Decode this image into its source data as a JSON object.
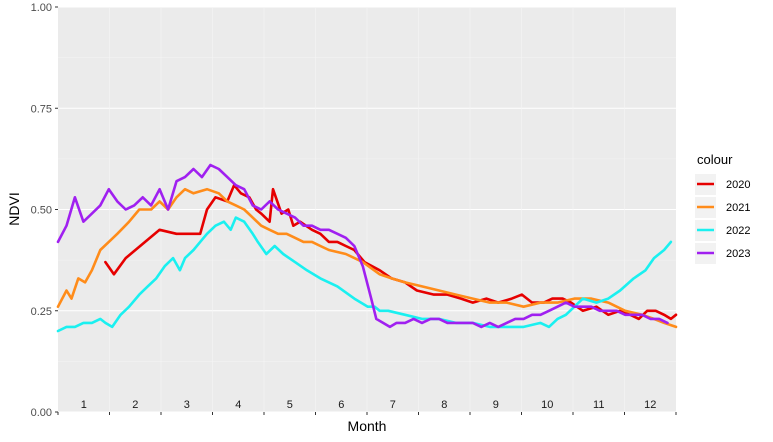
{
  "chart_data": {
    "type": "line",
    "xlabel": "Month",
    "ylabel": "NDVI",
    "ylim": [
      0,
      1
    ],
    "y_ticks": [
      "0.00",
      "0.25",
      "0.50",
      "0.75",
      "1.00"
    ],
    "x_range": [
      0,
      365
    ],
    "month_labels": [
      "1",
      "2",
      "3",
      "4",
      "5",
      "6",
      "7",
      "8",
      "9",
      "10",
      "11",
      "12"
    ],
    "grid": true,
    "legend": {
      "title": "colour",
      "position": "right"
    },
    "series": [
      {
        "name": "2020",
        "color": "#e60000",
        "x": [
          28,
          33,
          40,
          60,
          70,
          75,
          84,
          88,
          93,
          100,
          104,
          108,
          113,
          117,
          120,
          125,
          127,
          132,
          136,
          139,
          143,
          150,
          155,
          160,
          165,
          170,
          175,
          181,
          190,
          197,
          205,
          212,
          222,
          230,
          238,
          245,
          253,
          260,
          268,
          274,
          280,
          287,
          292,
          298,
          303,
          310,
          318,
          325,
          332,
          338,
          343,
          348,
          353,
          358,
          362,
          365
        ],
        "y": [
          0.37,
          0.34,
          0.38,
          0.45,
          0.44,
          0.44,
          0.44,
          0.5,
          0.53,
          0.52,
          0.56,
          0.54,
          0.53,
          0.5,
          0.49,
          0.47,
          0.55,
          0.49,
          0.5,
          0.46,
          0.47,
          0.45,
          0.44,
          0.42,
          0.42,
          0.41,
          0.4,
          0.37,
          0.35,
          0.33,
          0.32,
          0.3,
          0.29,
          0.29,
          0.28,
          0.27,
          0.28,
          0.27,
          0.28,
          0.29,
          0.27,
          0.27,
          0.28,
          0.28,
          0.27,
          0.25,
          0.26,
          0.24,
          0.25,
          0.24,
          0.23,
          0.25,
          0.25,
          0.24,
          0.23,
          0.24
        ]
      },
      {
        "name": "2021",
        "color": "#ff8c1a",
        "x": [
          0,
          5,
          8,
          12,
          16,
          20,
          25,
          30,
          35,
          42,
          48,
          55,
          60,
          65,
          70,
          75,
          80,
          88,
          95,
          100,
          105,
          110,
          115,
          120,
          125,
          130,
          135,
          140,
          145,
          150,
          155,
          160,
          170,
          180,
          190,
          197,
          205,
          215,
          225,
          235,
          245,
          255,
          265,
          275,
          285,
          295,
          305,
          315,
          325,
          335,
          345,
          352,
          358,
          365
        ],
        "y": [
          0.26,
          0.3,
          0.28,
          0.33,
          0.32,
          0.35,
          0.4,
          0.42,
          0.44,
          0.47,
          0.5,
          0.5,
          0.52,
          0.5,
          0.53,
          0.55,
          0.54,
          0.55,
          0.54,
          0.52,
          0.51,
          0.5,
          0.48,
          0.46,
          0.45,
          0.44,
          0.44,
          0.43,
          0.42,
          0.42,
          0.41,
          0.4,
          0.39,
          0.37,
          0.34,
          0.33,
          0.32,
          0.31,
          0.3,
          0.29,
          0.28,
          0.27,
          0.27,
          0.26,
          0.27,
          0.27,
          0.28,
          0.28,
          0.27,
          0.25,
          0.24,
          0.23,
          0.22,
          0.21
        ]
      },
      {
        "name": "2022",
        "color": "#1af0f0",
        "x": [
          0,
          5,
          10,
          15,
          20,
          25,
          28,
          32,
          37,
          42,
          48,
          53,
          58,
          63,
          68,
          72,
          75,
          80,
          84,
          88,
          93,
          98,
          102,
          105,
          110,
          115,
          118,
          123,
          128,
          133,
          140,
          147,
          155,
          165,
          175,
          183,
          187,
          190,
          195,
          205,
          215,
          225,
          235,
          245,
          255,
          265,
          275,
          285,
          290,
          295,
          300,
          305,
          310,
          318,
          325,
          332,
          340,
          347,
          352,
          358,
          362
        ],
        "y": [
          0.2,
          0.21,
          0.21,
          0.22,
          0.22,
          0.23,
          0.22,
          0.21,
          0.24,
          0.26,
          0.29,
          0.31,
          0.33,
          0.36,
          0.38,
          0.35,
          0.38,
          0.4,
          0.42,
          0.44,
          0.46,
          0.47,
          0.45,
          0.48,
          0.47,
          0.44,
          0.42,
          0.39,
          0.41,
          0.39,
          0.37,
          0.35,
          0.33,
          0.31,
          0.28,
          0.26,
          0.26,
          0.25,
          0.25,
          0.24,
          0.23,
          0.23,
          0.22,
          0.22,
          0.21,
          0.21,
          0.21,
          0.22,
          0.21,
          0.23,
          0.24,
          0.26,
          0.28,
          0.27,
          0.28,
          0.3,
          0.33,
          0.35,
          0.38,
          0.4,
          0.42
        ]
      },
      {
        "name": "2023",
        "color": "#a020f0",
        "x": [
          0,
          5,
          10,
          15,
          20,
          25,
          30,
          35,
          40,
          45,
          50,
          55,
          60,
          65,
          70,
          75,
          80,
          85,
          90,
          95,
          100,
          105,
          110,
          115,
          120,
          125,
          130,
          135,
          140,
          145,
          150,
          155,
          160,
          165,
          170,
          175,
          180,
          185,
          188,
          192,
          196,
          200,
          205,
          210,
          215,
          220,
          225,
          230,
          235,
          240,
          245,
          250,
          255,
          260,
          265,
          270,
          275,
          280,
          285,
          290,
          295,
          300,
          305,
          310,
          315,
          320,
          325,
          330,
          335,
          340,
          345,
          350,
          355,
          360
        ],
        "y": [
          0.42,
          0.46,
          0.53,
          0.47,
          0.49,
          0.51,
          0.55,
          0.52,
          0.5,
          0.51,
          0.53,
          0.51,
          0.55,
          0.5,
          0.57,
          0.58,
          0.6,
          0.58,
          0.61,
          0.6,
          0.58,
          0.56,
          0.55,
          0.51,
          0.5,
          0.52,
          0.5,
          0.49,
          0.48,
          0.46,
          0.46,
          0.45,
          0.45,
          0.44,
          0.43,
          0.41,
          0.36,
          0.28,
          0.23,
          0.22,
          0.21,
          0.22,
          0.22,
          0.23,
          0.22,
          0.23,
          0.23,
          0.22,
          0.22,
          0.22,
          0.22,
          0.21,
          0.22,
          0.21,
          0.22,
          0.23,
          0.23,
          0.24,
          0.24,
          0.25,
          0.26,
          0.27,
          0.26,
          0.26,
          0.26,
          0.25,
          0.25,
          0.25,
          0.24,
          0.24,
          0.24,
          0.23,
          0.23,
          0.22
        ]
      }
    ]
  }
}
